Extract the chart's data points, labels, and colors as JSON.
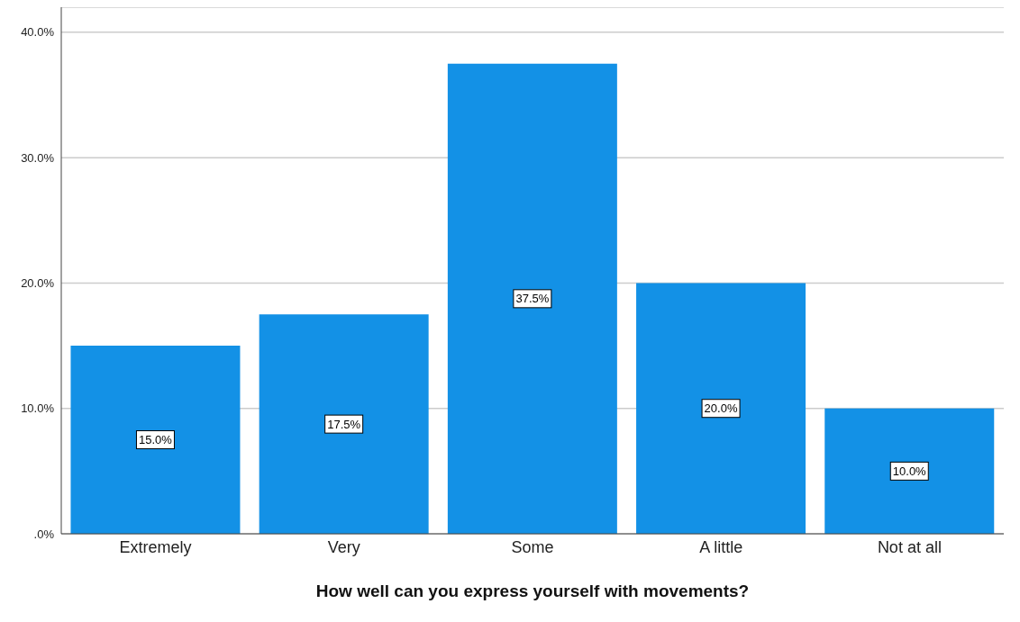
{
  "chart_data": {
    "type": "bar",
    "xlabel": "How well can you express yourself with movements?",
    "categories": [
      "Extremely",
      "Very",
      "Some",
      "A little",
      "Not at all"
    ],
    "values": [
      15,
      17.5,
      37.5,
      20,
      10
    ],
    "value_labels": [
      "15.0%",
      "17.5%",
      "37.5%",
      "20.0%",
      "10.0%"
    ],
    "color": "#1391e6",
    "ylim": [
      0,
      42
    ],
    "yticks": [
      {
        "value": 0,
        "label": ".0%"
      },
      {
        "value": 10,
        "label": "10.0%"
      },
      {
        "value": 20,
        "label": "20.0%"
      },
      {
        "value": 30,
        "label": "30.0%"
      },
      {
        "value": 40,
        "label": "40.0%"
      }
    ],
    "grid": "y"
  }
}
